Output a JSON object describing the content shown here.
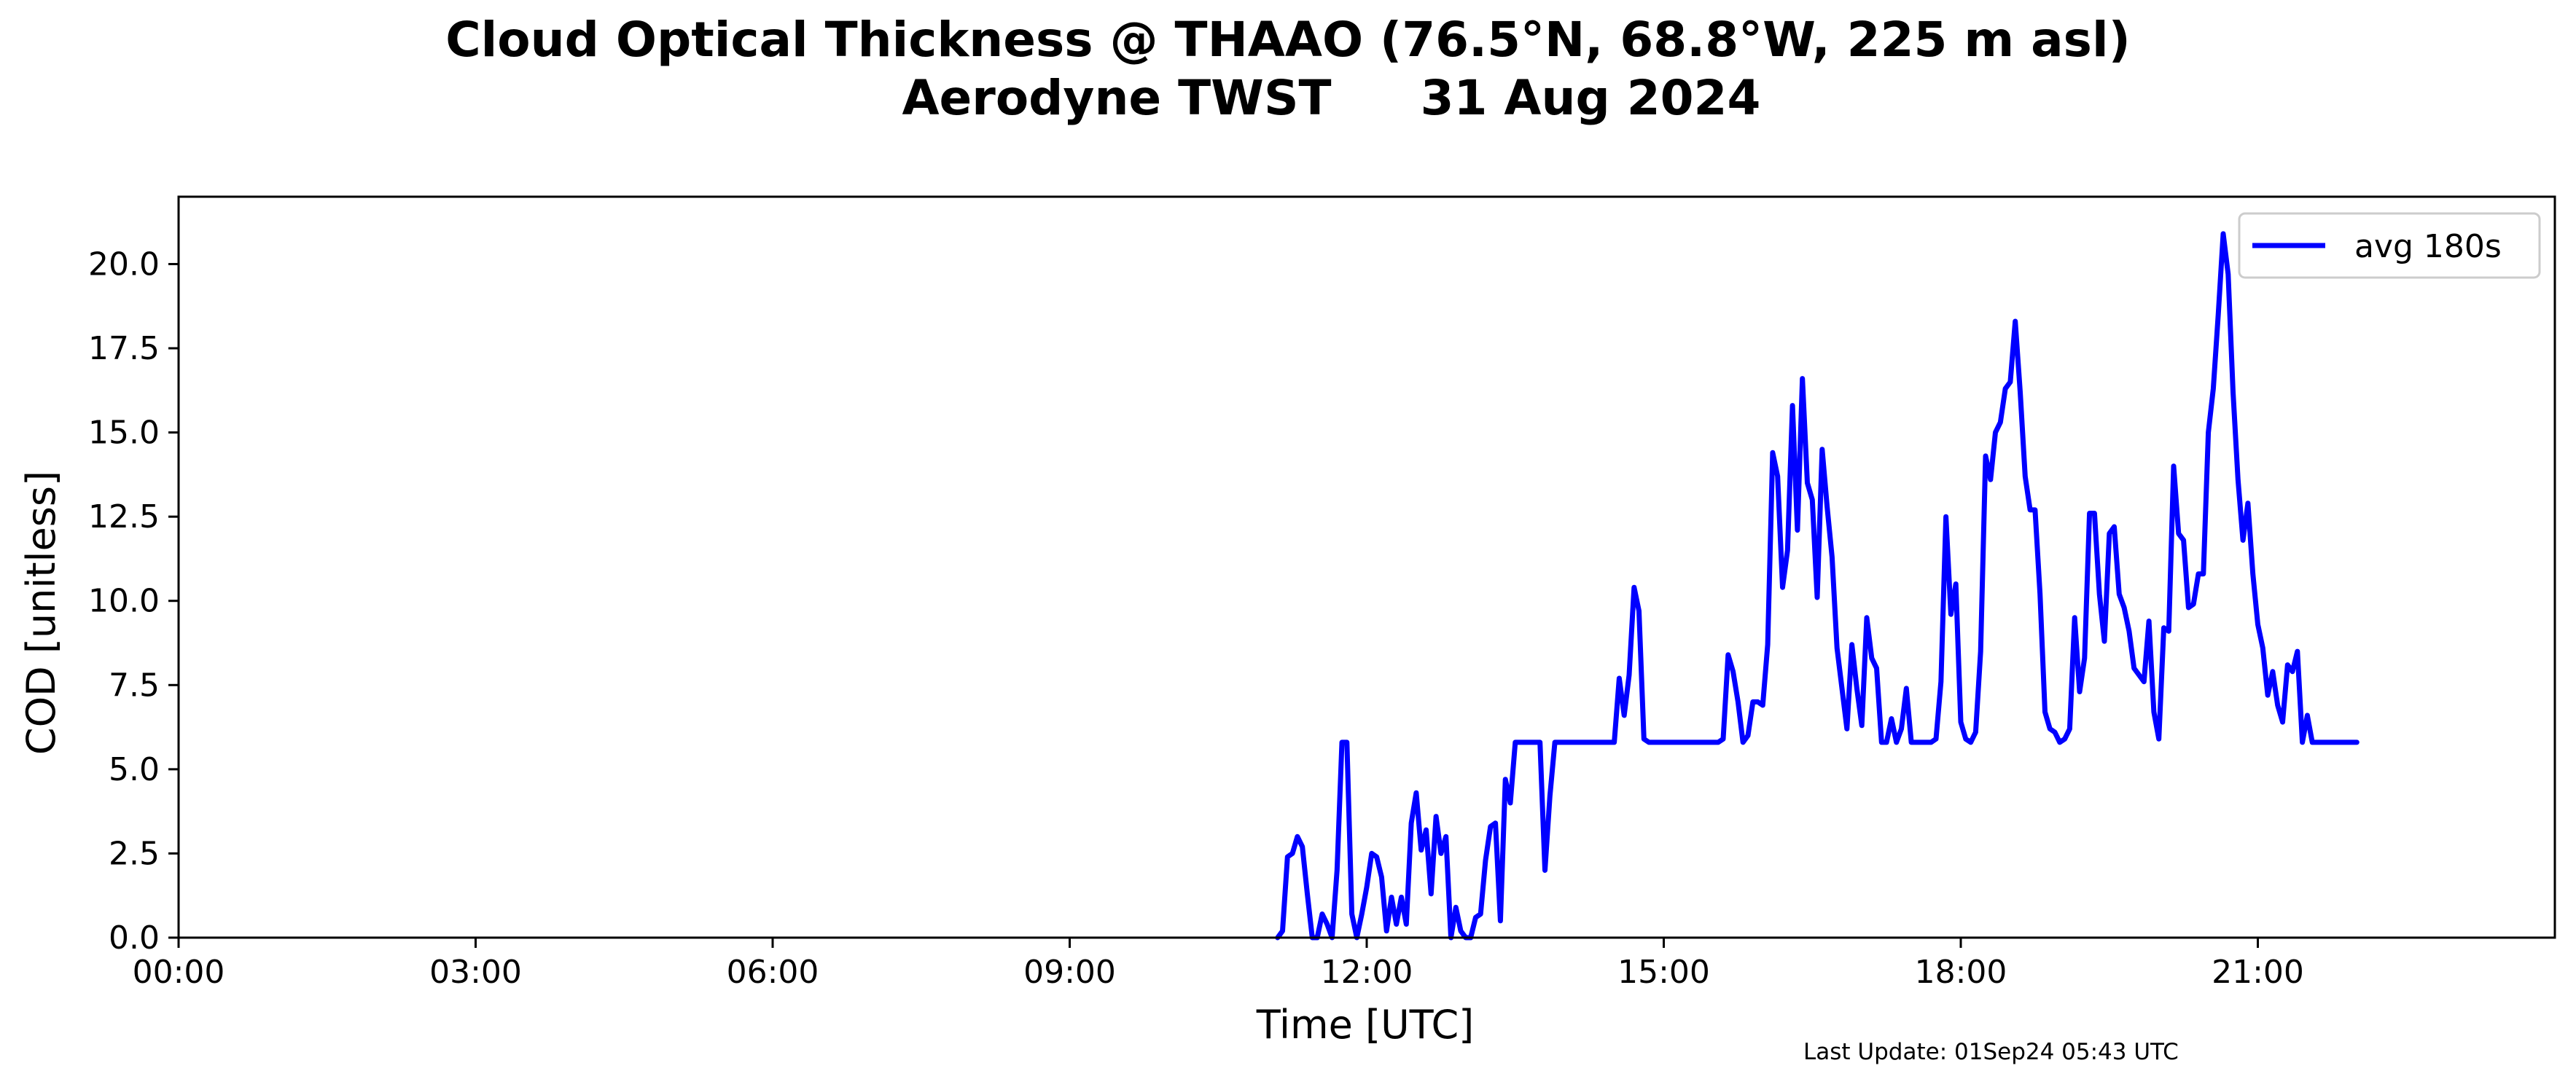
{
  "chart_data": {
    "type": "line",
    "title_line1": "Cloud Optical Thickness @ THAAO (76.5°N, 68.8°W, 225 m asl)",
    "title_line2_left": "Aerodyne TWST",
    "title_line2_right": "31 Aug 2024",
    "xlabel": "Time [UTC]",
    "ylabel": "COD [unitless]",
    "xlim": [
      "00:00",
      "24:00"
    ],
    "ylim": [
      0,
      22
    ],
    "x_ticks": [
      "00:00",
      "03:00",
      "06:00",
      "09:00",
      "12:00",
      "15:00",
      "18:00",
      "21:00"
    ],
    "y_ticks": [
      "0.0",
      "2.5",
      "5.0",
      "7.5",
      "10.0",
      "12.5",
      "15.0",
      "17.5",
      "20.0"
    ],
    "grid": false,
    "legend_position": "top-right",
    "footer": "Last Update: 01Sep24 05:43 UTC",
    "colors": {
      "series": "#0000ff",
      "axes": "#000000"
    },
    "series": [
      {
        "name": "avg 180s",
        "points": [
          [
            "11:06",
            0.0
          ],
          [
            "11:09",
            0.2
          ],
          [
            "11:12",
            2.4
          ],
          [
            "11:15",
            2.5
          ],
          [
            "11:18",
            3.0
          ],
          [
            "11:21",
            2.7
          ],
          [
            "11:24",
            1.3
          ],
          [
            "11:27",
            0.0
          ],
          [
            "11:30",
            0.0
          ],
          [
            "11:33",
            0.7
          ],
          [
            "11:36",
            0.4
          ],
          [
            "11:39",
            0.0
          ],
          [
            "11:42",
            2.0
          ],
          [
            "11:45",
            5.8
          ],
          [
            "11:48",
            5.8
          ],
          [
            "11:51",
            0.7
          ],
          [
            "11:54",
            0.0
          ],
          [
            "11:57",
            0.7
          ],
          [
            "12:00",
            1.5
          ],
          [
            "12:03",
            2.5
          ],
          [
            "12:06",
            2.4
          ],
          [
            "12:09",
            1.8
          ],
          [
            "12:12",
            0.2
          ],
          [
            "12:15",
            1.2
          ],
          [
            "12:18",
            0.4
          ],
          [
            "12:21",
            1.2
          ],
          [
            "12:24",
            0.4
          ],
          [
            "12:27",
            3.4
          ],
          [
            "12:30",
            4.3
          ],
          [
            "12:33",
            2.6
          ],
          [
            "12:36",
            3.2
          ],
          [
            "12:39",
            1.3
          ],
          [
            "12:42",
            3.6
          ],
          [
            "12:45",
            2.5
          ],
          [
            "12:48",
            3.0
          ],
          [
            "12:51",
            0.0
          ],
          [
            "12:54",
            0.9
          ],
          [
            "12:57",
            0.2
          ],
          [
            "13:00",
            0.0
          ],
          [
            "13:03",
            0.0
          ],
          [
            "13:06",
            0.6
          ],
          [
            "13:09",
            0.7
          ],
          [
            "13:12",
            2.3
          ],
          [
            "13:15",
            3.3
          ],
          [
            "13:18",
            3.4
          ],
          [
            "13:21",
            0.5
          ],
          [
            "13:24",
            4.7
          ],
          [
            "13:27",
            4.0
          ],
          [
            "13:30",
            5.8
          ],
          [
            "13:45",
            5.8
          ],
          [
            "13:48",
            2.0
          ],
          [
            "13:51",
            4.2
          ],
          [
            "13:54",
            5.8
          ],
          [
            "14:30",
            5.8
          ],
          [
            "14:33",
            7.7
          ],
          [
            "14:36",
            6.6
          ],
          [
            "14:39",
            7.8
          ],
          [
            "14:42",
            10.4
          ],
          [
            "14:45",
            9.7
          ],
          [
            "14:48",
            5.9
          ],
          [
            "14:51",
            5.8
          ],
          [
            "15:33",
            5.8
          ],
          [
            "15:36",
            5.9
          ],
          [
            "15:39",
            8.4
          ],
          [
            "15:42",
            7.9
          ],
          [
            "15:45",
            7.0
          ],
          [
            "15:48",
            5.8
          ],
          [
            "15:51",
            6.0
          ],
          [
            "15:54",
            7.0
          ],
          [
            "15:57",
            7.0
          ],
          [
            "16:00",
            6.9
          ],
          [
            "16:03",
            8.7
          ],
          [
            "16:06",
            14.4
          ],
          [
            "16:09",
            13.7
          ],
          [
            "16:12",
            10.4
          ],
          [
            "16:15",
            11.5
          ],
          [
            "16:18",
            15.8
          ],
          [
            "16:21",
            12.1
          ],
          [
            "16:24",
            16.6
          ],
          [
            "16:27",
            13.5
          ],
          [
            "16:30",
            13.0
          ],
          [
            "16:33",
            10.1
          ],
          [
            "16:36",
            14.5
          ],
          [
            "16:39",
            12.8
          ],
          [
            "16:42",
            11.3
          ],
          [
            "16:45",
            8.6
          ],
          [
            "16:48",
            7.4
          ],
          [
            "16:51",
            6.2
          ],
          [
            "16:54",
            8.7
          ],
          [
            "16:57",
            7.4
          ],
          [
            "17:00",
            6.3
          ],
          [
            "17:03",
            9.5
          ],
          [
            "17:06",
            8.3
          ],
          [
            "17:09",
            8.0
          ],
          [
            "17:12",
            5.8
          ],
          [
            "17:15",
            5.8
          ],
          [
            "17:18",
            6.5
          ],
          [
            "17:21",
            5.8
          ],
          [
            "17:24",
            6.2
          ],
          [
            "17:27",
            7.4
          ],
          [
            "17:30",
            5.8
          ],
          [
            "17:42",
            5.8
          ],
          [
            "17:45",
            5.9
          ],
          [
            "17:48",
            7.6
          ],
          [
            "17:51",
            12.5
          ],
          [
            "17:54",
            9.6
          ],
          [
            "17:57",
            10.5
          ],
          [
            "18:00",
            6.4
          ],
          [
            "18:03",
            5.9
          ],
          [
            "18:06",
            5.8
          ],
          [
            "18:09",
            6.1
          ],
          [
            "18:12",
            8.5
          ],
          [
            "18:15",
            14.3
          ],
          [
            "18:18",
            13.6
          ],
          [
            "18:21",
            15.0
          ],
          [
            "18:24",
            15.3
          ],
          [
            "18:27",
            16.3
          ],
          [
            "18:30",
            16.5
          ],
          [
            "18:33",
            18.3
          ],
          [
            "18:36",
            16.2
          ],
          [
            "18:39",
            13.7
          ],
          [
            "18:42",
            12.7
          ],
          [
            "18:45",
            12.7
          ],
          [
            "18:48",
            10.2
          ],
          [
            "18:51",
            6.7
          ],
          [
            "18:54",
            6.2
          ],
          [
            "18:57",
            6.1
          ],
          [
            "19:00",
            5.8
          ],
          [
            "19:03",
            5.9
          ],
          [
            "19:06",
            6.2
          ],
          [
            "19:09",
            9.5
          ],
          [
            "19:12",
            7.3
          ],
          [
            "19:15",
            8.3
          ],
          [
            "19:18",
            12.6
          ],
          [
            "19:21",
            12.6
          ],
          [
            "19:24",
            10.2
          ],
          [
            "19:27",
            8.8
          ],
          [
            "19:30",
            12.0
          ],
          [
            "19:33",
            12.2
          ],
          [
            "19:36",
            10.2
          ],
          [
            "19:39",
            9.8
          ],
          [
            "19:42",
            9.1
          ],
          [
            "19:45",
            8.0
          ],
          [
            "19:48",
            7.8
          ],
          [
            "19:51",
            7.6
          ],
          [
            "19:54",
            9.4
          ],
          [
            "19:57",
            6.7
          ],
          [
            "20:00",
            5.9
          ],
          [
            "20:03",
            9.2
          ],
          [
            "20:06",
            9.1
          ],
          [
            "20:09",
            14.0
          ],
          [
            "20:12",
            12.0
          ],
          [
            "20:15",
            11.8
          ],
          [
            "20:18",
            9.8
          ],
          [
            "20:21",
            9.9
          ],
          [
            "20:24",
            10.8
          ],
          [
            "20:27",
            10.8
          ],
          [
            "20:30",
            15.0
          ],
          [
            "20:33",
            16.3
          ],
          [
            "20:36",
            18.5
          ],
          [
            "20:39",
            20.9
          ],
          [
            "20:42",
            19.7
          ],
          [
            "20:45",
            16.2
          ],
          [
            "20:48",
            13.6
          ],
          [
            "20:51",
            11.8
          ],
          [
            "20:54",
            12.9
          ],
          [
            "20:57",
            10.8
          ],
          [
            "21:00",
            9.3
          ],
          [
            "21:03",
            8.6
          ],
          [
            "21:06",
            7.2
          ],
          [
            "21:09",
            7.9
          ],
          [
            "21:12",
            6.9
          ],
          [
            "21:15",
            6.4
          ],
          [
            "21:18",
            8.1
          ],
          [
            "21:21",
            7.9
          ],
          [
            "21:24",
            8.5
          ],
          [
            "21:27",
            5.8
          ],
          [
            "21:30",
            6.6
          ],
          [
            "21:33",
            5.8
          ],
          [
            "22:00",
            5.8
          ]
        ]
      }
    ]
  }
}
